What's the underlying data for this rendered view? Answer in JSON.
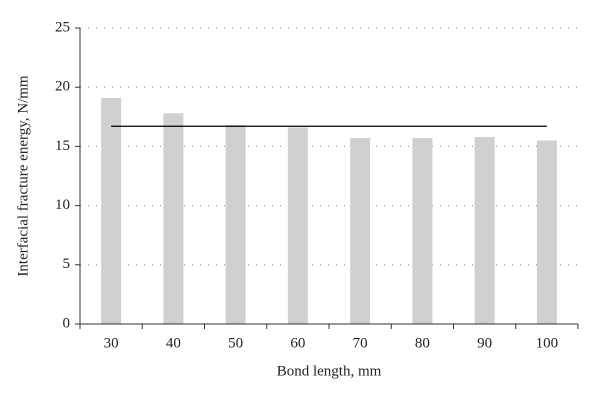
{
  "chart_data": {
    "type": "bar",
    "xlabel": "Bond length, mm",
    "ylabel": "Interfacial fracture energy, N/mm",
    "categories": [
      "30",
      "40",
      "50",
      "60",
      "70",
      "80",
      "90",
      "100"
    ],
    "values": [
      19.1,
      17.8,
      16.8,
      16.6,
      15.7,
      15.7,
      15.8,
      15.5
    ],
    "color": "#d0d0d0",
    "reference_line": {
      "value": 16.7,
      "color": "#000000"
    },
    "ylim": [
      0,
      25
    ],
    "yticks": [
      0,
      5,
      10,
      15,
      20,
      25
    ],
    "grid": true
  }
}
